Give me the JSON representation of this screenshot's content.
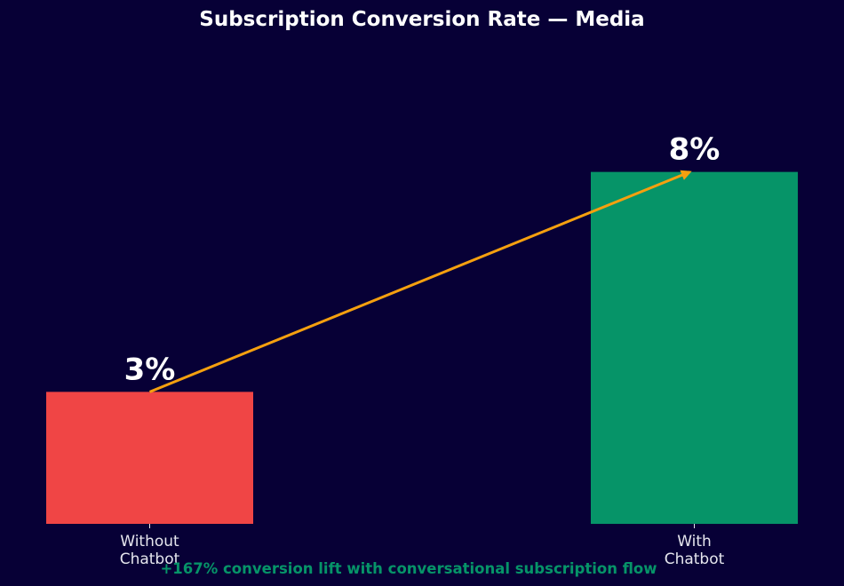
{
  "chart_data": {
    "type": "bar",
    "title": "Subscription Conversion Rate — Media",
    "categories": [
      "Without\nChatbot",
      "With\nChatbot"
    ],
    "values": [
      3,
      8
    ],
    "value_labels": [
      "3%",
      "8%"
    ],
    "bar_colors": [
      "#f04545",
      "#069468"
    ],
    "ylim": [
      0,
      11
    ],
    "grid": false,
    "legend": "none",
    "annotation": {
      "text": "+167% conversion lift with conversational subscription flow",
      "color": "#069468",
      "arrow_from": [
        "Without\nChatbot",
        3
      ],
      "arrow_to": [
        "With\nChatbot",
        8
      ],
      "arrow_color": "#f5a00f"
    }
  },
  "colors": {
    "background": "#070036",
    "text": "#ffffff",
    "tick_text": "#e6e6ee"
  }
}
